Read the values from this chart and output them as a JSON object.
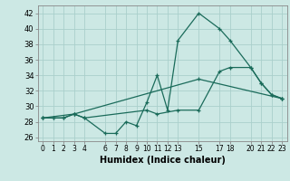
{
  "xlabel": "Humidex (Indice chaleur)",
  "ylabel": "",
  "background_color": "#cce8e4",
  "grid_color": "#aacfcb",
  "line_color": "#1a6b5a",
  "xlim": [
    -0.5,
    23.5
  ],
  "ylim": [
    25.5,
    43.0
  ],
  "yticks": [
    26,
    28,
    30,
    32,
    34,
    36,
    38,
    40,
    42
  ],
  "xtick_positions": [
    0,
    1,
    2,
    3,
    4,
    6,
    7,
    8,
    9,
    10,
    11,
    12,
    13,
    15,
    17,
    18,
    20,
    21,
    22,
    23
  ],
  "xtick_labels": [
    "0",
    "1",
    "2",
    "3",
    "4",
    "6",
    "7",
    "8",
    "9",
    "10",
    "11",
    "12",
    "13",
    "15",
    "17",
    "18",
    "20",
    "21",
    "22",
    "23"
  ],
  "lines": [
    {
      "x": [
        0,
        1,
        2,
        3,
        4,
        6,
        7,
        8,
        9,
        10,
        11,
        12,
        13,
        15,
        17,
        18,
        20,
        21,
        22,
        23
      ],
      "y": [
        28.5,
        28.5,
        28.5,
        29,
        28.5,
        26.5,
        26.5,
        28,
        27.5,
        30.5,
        34.0,
        29.5,
        38.5,
        42,
        40,
        38.5,
        35,
        33,
        31.5,
        31
      ]
    },
    {
      "x": [
        0,
        1,
        2,
        3,
        4,
        10,
        11,
        13,
        15,
        17,
        18,
        20,
        21,
        22,
        23
      ],
      "y": [
        28.5,
        28.5,
        28.5,
        29,
        28.5,
        29.5,
        29.0,
        29.5,
        29.5,
        34.5,
        35.0,
        35.0,
        33.0,
        31.5,
        31
      ]
    },
    {
      "x": [
        0,
        3,
        15,
        23
      ],
      "y": [
        28.5,
        29,
        33.5,
        31
      ]
    }
  ]
}
